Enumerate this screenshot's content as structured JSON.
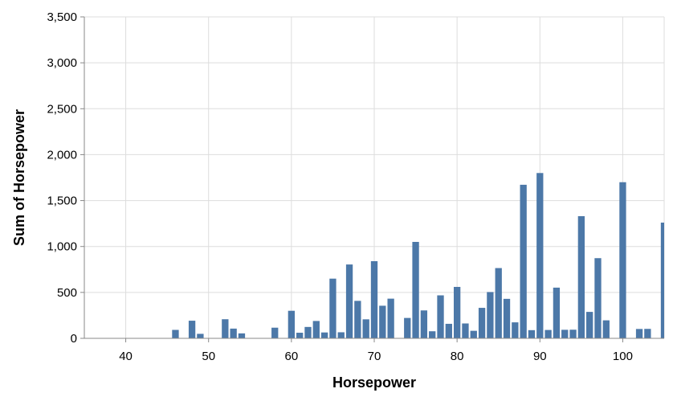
{
  "chart_data": {
    "type": "bar",
    "title": "",
    "xlabel": "Horsepower",
    "ylabel": "Sum of Horsepower",
    "xlim": [
      35,
      105
    ],
    "ylim": [
      0,
      3500
    ],
    "x_ticks": [
      40,
      50,
      60,
      70,
      80,
      90,
      100
    ],
    "x_tick_labels": [
      "40",
      "50",
      "60",
      "70",
      "80",
      "90",
      "100"
    ],
    "y_ticks": [
      0,
      500,
      1000,
      1500,
      2000,
      2500,
      3000,
      3500
    ],
    "y_tick_labels": [
      "0",
      "500",
      "1,000",
      "1,500",
      "2,000",
      "2,500",
      "3,000",
      "3,500"
    ],
    "grid": true,
    "bar_color": "#4c78a8",
    "x": [
      46,
      48,
      49,
      52,
      53,
      54,
      58,
      60,
      61,
      62,
      63,
      64,
      65,
      66,
      67,
      68,
      69,
      70,
      71,
      72,
      74,
      75,
      76,
      77,
      78,
      79,
      80,
      81,
      82,
      83,
      84,
      85,
      86,
      87,
      88,
      89,
      90,
      91,
      92,
      93,
      94,
      95,
      96,
      97,
      98,
      100,
      102,
      103,
      105
    ],
    "values": [
      92,
      192,
      49,
      208,
      106,
      54,
      116,
      300,
      61,
      124,
      189,
      64,
      650,
      66,
      804,
      408,
      207,
      840,
      355,
      432,
      222,
      1050,
      304,
      77,
      468,
      158,
      560,
      162,
      82,
      332,
      504,
      765,
      430,
      174,
      1672,
      89,
      1800,
      91,
      552,
      93,
      94,
      1330,
      288,
      873,
      196,
      1700,
      102,
      103,
      1260
    ]
  }
}
